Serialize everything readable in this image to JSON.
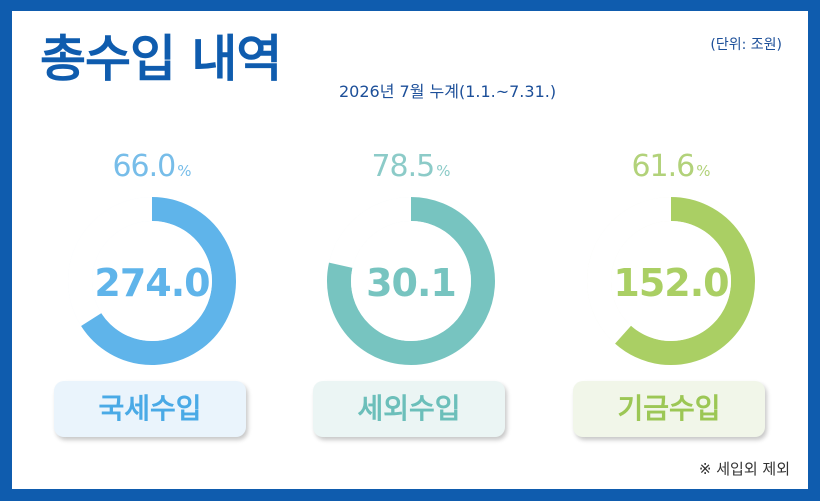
{
  "header": {
    "title": "총수입 내역",
    "subtitle": "2026년 7월 누계(1.1.~7.31.)",
    "unit": "(단위: 조원)"
  },
  "footnote": "※ 세입외 제외",
  "chart_data": {
    "type": "donut",
    "percent_sign": "%",
    "items": [
      {
        "label": "국세수입",
        "value": "274.0",
        "percent": 66.0,
        "percent_text": "66.0",
        "color": "#5fb4ea",
        "track": "#eef5fc",
        "pct_color": "#77bde9",
        "label_bg": "#eaf4fc",
        "label_color": "#4aaae6"
      },
      {
        "label": "세외수입",
        "value": "30.1",
        "percent": 78.5,
        "percent_text": "78.5",
        "color": "#77c4c0",
        "track": "#eef7f7",
        "pct_color": "#8ccbc8",
        "label_bg": "#ebf5f4",
        "label_color": "#6cbfba"
      },
      {
        "label": "기금수입",
        "value": "152.0",
        "percent": 61.6,
        "percent_text": "61.6",
        "color": "#aacf64",
        "track": "#f2f7ea",
        "pct_color": "#b2d27a",
        "label_bg": "#f1f6e9",
        "label_color": "#9cc755"
      }
    ]
  }
}
